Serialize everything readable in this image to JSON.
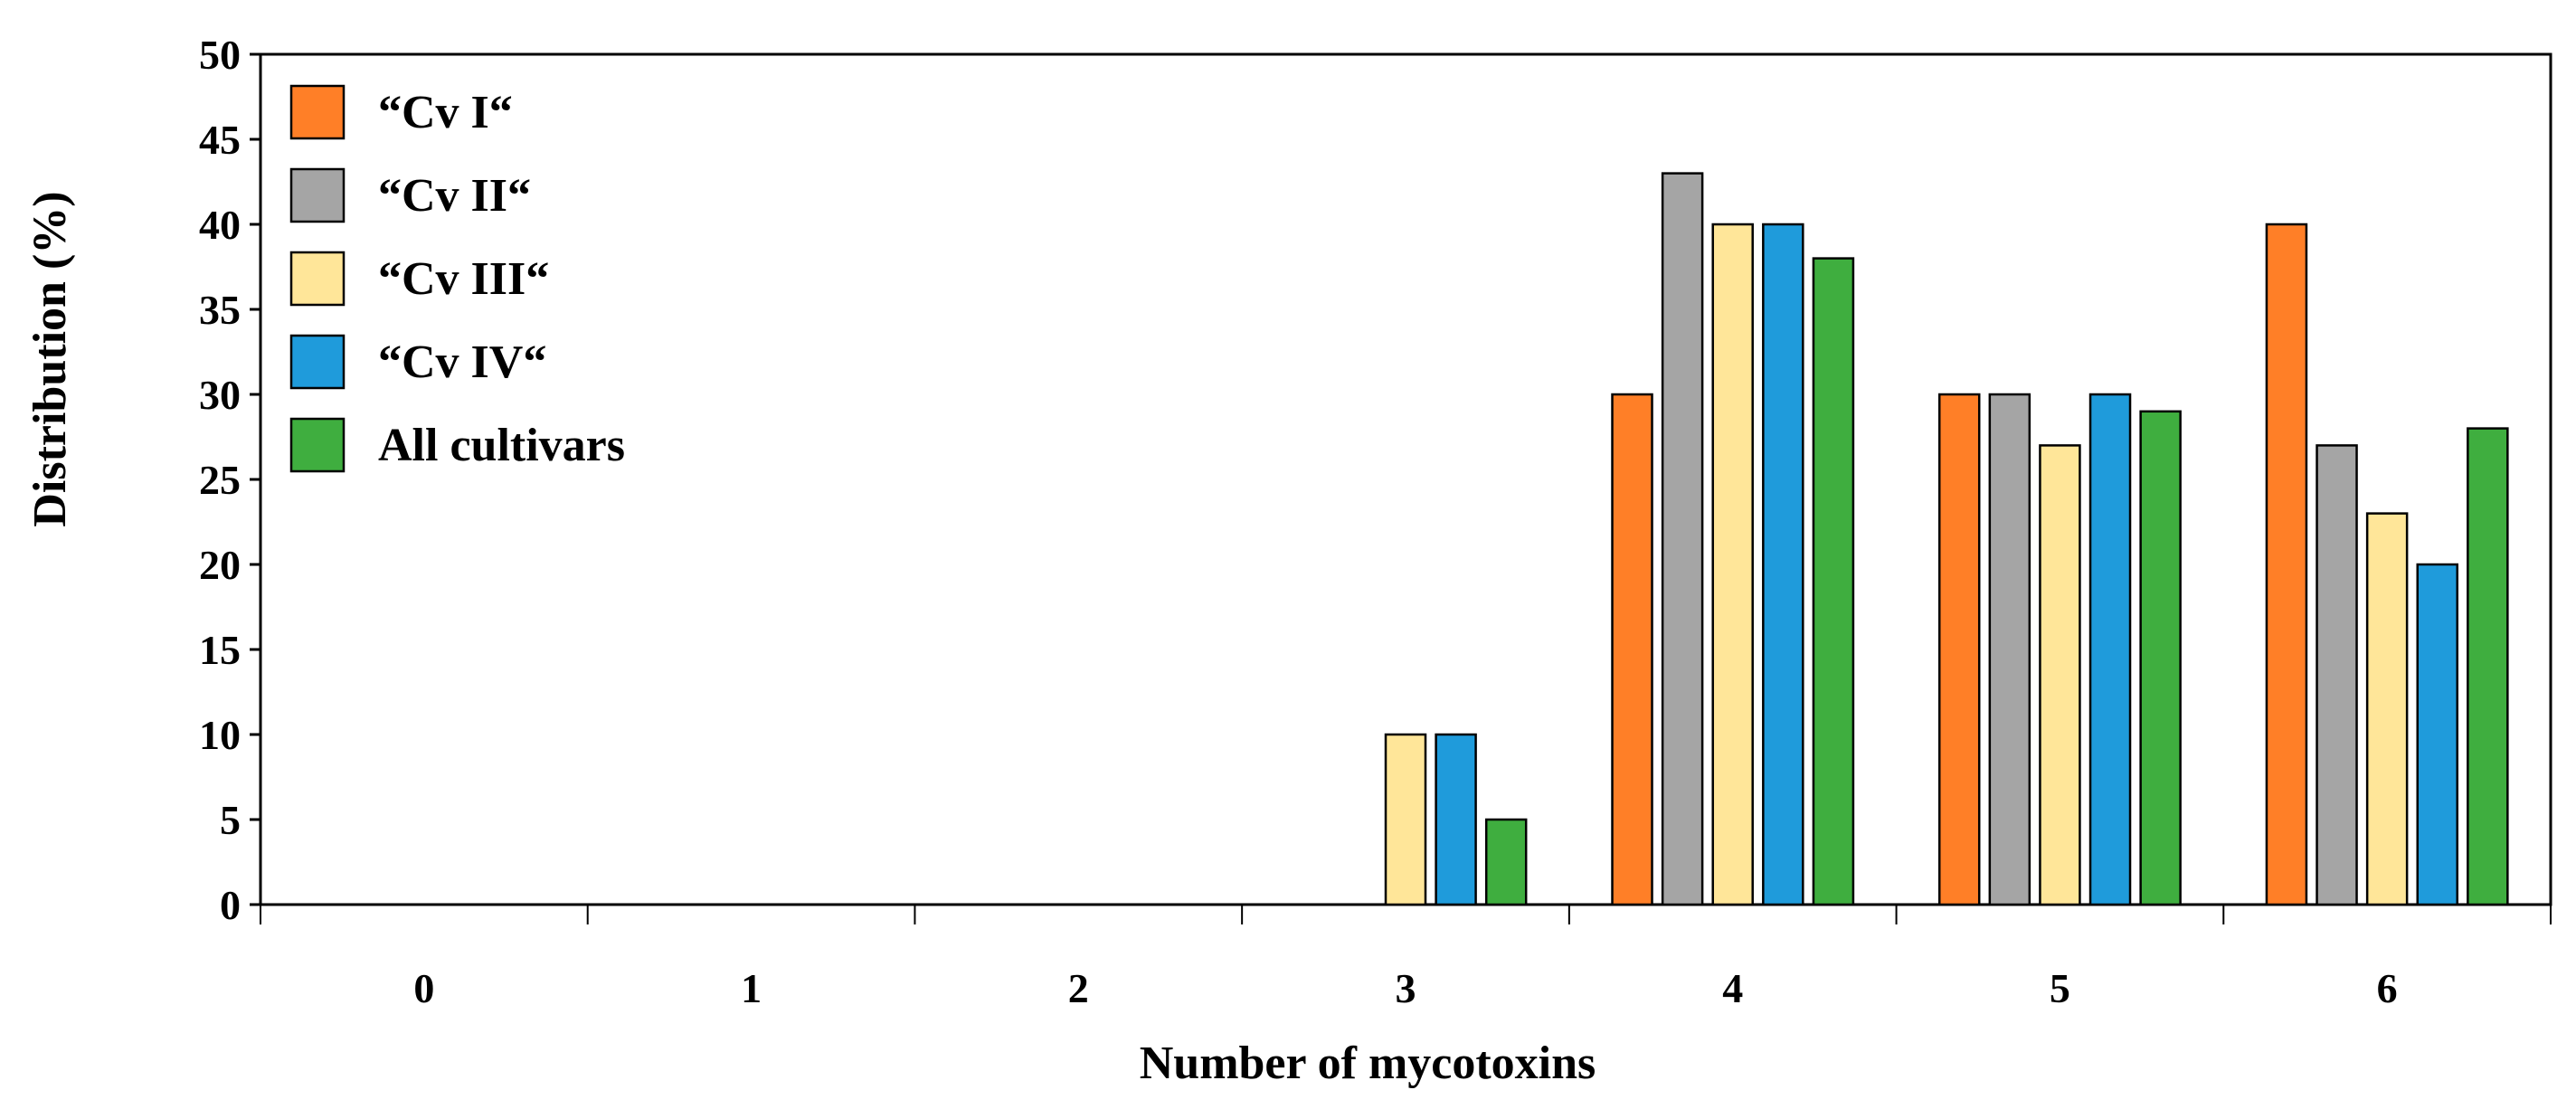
{
  "chart_data": {
    "type": "bar",
    "xlabel": "Number of mycotoxins",
    "ylabel": "Distribution (%)",
    "ylim": [
      0,
      50
    ],
    "yticks": [
      0,
      5,
      10,
      15,
      20,
      25,
      30,
      35,
      40,
      45,
      50
    ],
    "grid": false,
    "legend_position": "top-left",
    "categories": [
      "0",
      "1",
      "2",
      "3",
      "4",
      "5",
      "6"
    ],
    "series": [
      {
        "name": "“Cv I“",
        "color": "#FF7F27",
        "values": [
          0,
          0,
          0,
          0,
          30,
          30,
          40
        ]
      },
      {
        "name": "“Cv II“",
        "color": "#A5A5A5",
        "values": [
          0,
          0,
          0,
          0,
          43,
          30,
          27
        ]
      },
      {
        "name": "“Cv III“",
        "color": "#FFE699",
        "values": [
          0,
          0,
          0,
          10,
          40,
          27,
          23
        ]
      },
      {
        "name": "“Cv IV“",
        "color": "#1F9BDB",
        "values": [
          0,
          0,
          0,
          10,
          40,
          30,
          20
        ]
      },
      {
        "name": "All cultivars",
        "color": "#3FAE3F",
        "values": [
          0,
          0,
          0,
          5,
          38,
          29,
          28
        ]
      }
    ]
  }
}
